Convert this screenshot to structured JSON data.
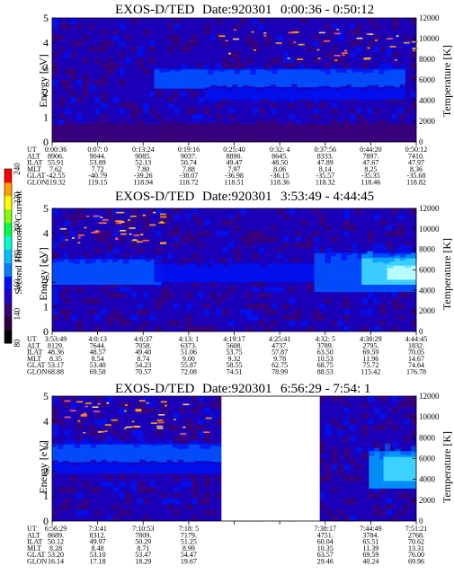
{
  "chart_data": {
    "type": "heatmap",
    "colorbar": {
      "title": "Second Harmonic Current",
      "ticks": [
        "80",
        "140",
        "160",
        "180",
        "200",
        "220",
        "240"
      ],
      "colors": [
        "#000000",
        "#2b0040",
        "#3a0078",
        "#2200cc",
        "#0010ff",
        "#0080ff",
        "#00c0ff",
        "#00ffd0",
        "#00ff40",
        "#80ff00",
        "#ffff00",
        "#ffa000",
        "#ff0000"
      ]
    },
    "panels": [
      {
        "title": "EXOS-D/TED",
        "date": "Date:920301",
        "range": "0:00:36 - 0:50:12",
        "ylabel": "Energy [eV]",
        "y2label": "Temperature [K]",
        "yticks": [
          "0",
          "1",
          "2",
          "3",
          "4",
          "5"
        ],
        "y2ticks": [
          "0",
          "2000",
          "4000",
          "6000",
          "8000",
          "10000",
          "12000"
        ],
        "gaps": [],
        "bands": [
          {
            "from": 0.28,
            "to": 0.97,
            "ylo": 2.15,
            "yhi": 2.95,
            "level": 4
          },
          {
            "from": 0.42,
            "to": 0.97,
            "ylo": 1.7,
            "yhi": 2.2,
            "level": 3
          },
          {
            "from": 0.0,
            "to": 1.0,
            "ylo": 0.0,
            "yhi": 0.7,
            "level": 1
          }
        ],
        "dots": {
          "from": 0.45,
          "to": 0.99,
          "ylo": 3.3,
          "yhi": 4.6
        },
        "table": {
          "row_labels": [
            "UT",
            "ALT",
            "ILAT",
            "MLT",
            "GLAT",
            "GLON"
          ],
          "columns": [
            [
              "0:00:36",
              "8906.",
              "55.91",
              "7.62",
              "-42.55",
              "119.32"
            ],
            [
              "0:07: 0",
              "9044.",
              "53.89",
              "7.72",
              "-40.79",
              "119.15"
            ],
            [
              "0:13:24",
              "9085.",
              "52.13",
              "7.80",
              "-39.26",
              "118.94"
            ],
            [
              "0:19:16",
              "9037.",
              "50.74",
              "7.88",
              "-38.07",
              "118.72"
            ],
            [
              "0:25:40",
              "8890.",
              "49.47",
              "7.97",
              "-36.98",
              "118.51"
            ],
            [
              "0:32: 4",
              "8645.",
              "48.50",
              "8.06",
              "-36.15",
              "118.36"
            ],
            [
              "0:37:56",
              "8333.",
              "47.89",
              "8.14",
              "-35.57",
              "118.32"
            ],
            [
              "0:44:20",
              "7897.",
              "47.67",
              "8.25",
              "-35.35",
              "118.46"
            ],
            [
              "0:50:12",
              "7410.",
              "47.97",
              "8.36",
              "-35.68",
              "118.82"
            ]
          ]
        }
      },
      {
        "title": "EXOS-D/TED",
        "date": "Date:920301",
        "range": "3:53:49 - 4:44:45",
        "ylabel": "Energy [eV]",
        "y2label": "Temperature [K]",
        "yticks": [
          "0",
          "1",
          "2",
          "3",
          "4",
          "5"
        ],
        "y2ticks": [
          "0",
          "2000",
          "4000",
          "6000",
          "8000",
          "10000",
          "12000"
        ],
        "gaps": [],
        "bands": [
          {
            "from": 0.0,
            "to": 0.3,
            "ylo": 1.9,
            "yhi": 2.95,
            "level": 4
          },
          {
            "from": 0.28,
            "to": 0.72,
            "ylo": 2.0,
            "yhi": 2.8,
            "level": 3
          },
          {
            "from": 0.72,
            "to": 1.0,
            "ylo": 1.6,
            "yhi": 3.2,
            "level": 4
          },
          {
            "from": 0.85,
            "to": 1.0,
            "ylo": 1.9,
            "yhi": 3.0,
            "level": 6
          },
          {
            "from": 0.92,
            "to": 1.0,
            "ylo": 2.1,
            "yhi": 2.7,
            "level": 7
          }
        ],
        "dots": {
          "from": 0.02,
          "to": 0.3,
          "ylo": 3.6,
          "yhi": 4.9
        },
        "table": {
          "row_labels": [
            "UT",
            "ALT",
            "ILAT",
            "MLT",
            "GLAT",
            "GLON"
          ],
          "columns": [
            [
              "3:53:49",
              "8129.",
              "48.36",
              "8.35",
              "53.17",
              "68.88"
            ],
            [
              "4:0:13",
              "7644.",
              "48.57",
              "8.54",
              "53.40",
              "69.58"
            ],
            [
              "4:6:37",
              "7058.",
              "49.40",
              "8.74",
              "54.23",
              "70.57"
            ],
            [
              "4:13: 1",
              "6373.",
              "51.06",
              "9.00",
              "55.87",
              "72.08"
            ],
            [
              "4:19:17",
              "5608.",
              "53.75",
              "9.32",
              "58.55",
              "74.51"
            ],
            [
              "4:25:41",
              "4737.",
              "57.87",
              "9.78",
              "62.75",
              "78.99"
            ],
            [
              "4:32: 5",
              "3789.",
              "63.50",
              "10.53",
              "68.75",
              "88.53"
            ],
            [
              "4:38:29",
              "2795.",
              "69.59",
              "11.96",
              "75.72",
              "115.42"
            ],
            [
              "4:44:45",
              "1832.",
              "70.05",
              "14.67",
              "74.64",
              "176.78"
            ]
          ]
        }
      },
      {
        "title": "EXOS-D/TED",
        "date": "Date:920301",
        "range": "6:56:29 - 7:54: 1",
        "ylabel": "Energy [eV]",
        "y2label": "Temperature [K]",
        "yticks": [
          "0",
          "1",
          "2",
          "3",
          "4",
          "5"
        ],
        "y2ticks": [
          "0",
          "2000",
          "4000",
          "6000",
          "8000",
          "10000",
          "12000"
        ],
        "gaps": [
          {
            "from": 0.465,
            "to": 0.735
          }
        ],
        "bands": [
          {
            "from": 0.0,
            "to": 0.465,
            "ylo": 2.3,
            "yhi": 3.1,
            "level": 4
          },
          {
            "from": 0.0,
            "to": 0.465,
            "ylo": 1.9,
            "yhi": 2.35,
            "level": 3
          },
          {
            "from": 0.87,
            "to": 1.0,
            "ylo": 1.3,
            "yhi": 2.8,
            "level": 5
          },
          {
            "from": 0.91,
            "to": 1.0,
            "ylo": 1.6,
            "yhi": 2.6,
            "level": 6
          }
        ],
        "dots": {
          "from": 0.02,
          "to": 0.46,
          "ylo": 3.5,
          "yhi": 4.9
        },
        "table": {
          "row_labels": [
            "UT",
            "ALT",
            "ILAT",
            "MLT",
            "GLAT",
            "GLON"
          ],
          "columns": [
            [
              "6:56:29",
              "8689.",
              "50.12",
              "8.28",
              "53.20",
              "16.14"
            ],
            [
              "7:3:41",
              "8312.",
              "49.97",
              "8.48",
              "53.10",
              "17.18"
            ],
            [
              "7:10:53",
              "7809.",
              "50.29",
              "8.71",
              "53.47",
              "18.29"
            ],
            [
              "7:18: 5",
              "7179.",
              "51.25",
              "8.99",
              "54.47",
              "19.67"
            ],
            [
              "",
              "",
              "",
              "",
              "",
              ""
            ],
            [
              "",
              "",
              "",
              "",
              "",
              ""
            ],
            [
              "7:38:17",
              "4751.",
              "60.04",
              "10.35",
              "63.57",
              "29.46"
            ],
            [
              "7:44:49",
              "3784.",
              "65.51",
              "11.39",
              "69.59",
              "40.24"
            ],
            [
              "7:51:21",
              "2768.",
              "70.62",
              "13.31",
              "76.00",
              "69.96"
            ]
          ]
        }
      }
    ]
  }
}
